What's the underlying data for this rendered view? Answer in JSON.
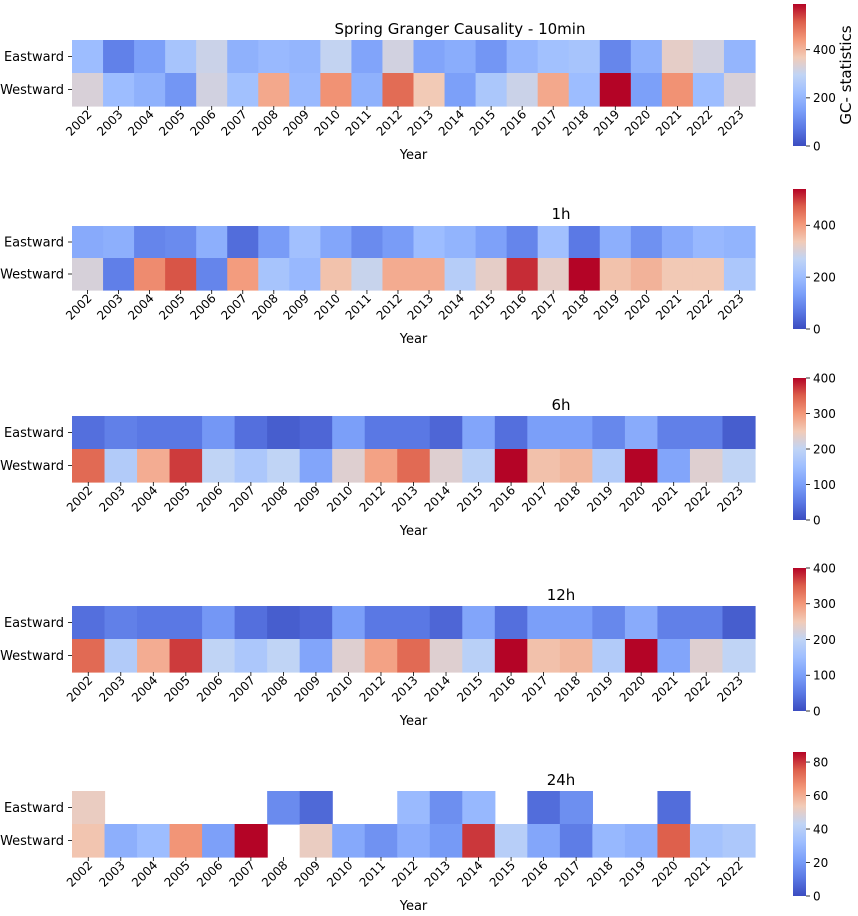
{
  "chart_data": [
    {
      "type": "heatmap",
      "title": "Spring Granger Causality  - 10min",
      "xlabel": "Year",
      "rows": [
        "Eastward",
        "Westward"
      ],
      "categories": [
        "2002",
        "2003",
        "2004",
        "2005",
        "2006",
        "2007",
        "2008",
        "2009",
        "2010",
        "2011",
        "2012",
        "2013",
        "2014",
        "2015",
        "2016",
        "2017",
        "2018",
        "2019",
        "2020",
        "2021",
        "2022",
        "2023"
      ],
      "values": [
        [
          220,
          90,
          150,
          240,
          310,
          190,
          210,
          200,
          300,
          160,
          320,
          160,
          180,
          130,
          200,
          230,
          240,
          100,
          190,
          350,
          320,
          200
        ],
        [
          330,
          220,
          190,
          130,
          320,
          230,
          420,
          210,
          450,
          190,
          500,
          370,
          150,
          250,
          310,
          420,
          220,
          600,
          150,
          450,
          220,
          330
        ]
      ],
      "vmin": 0,
      "vmax": 590,
      "colorbar": {
        "ticks": [
          0,
          200,
          400
        ],
        "label": "GC- statistics"
      }
    },
    {
      "type": "heatmap",
      "title": "1h",
      "xlabel": "Year",
      "rows": [
        "Eastward",
        "Westward"
      ],
      "categories": [
        "2002",
        "2003",
        "2004",
        "2005",
        "2006",
        "2007",
        "2008",
        "2009",
        "2010",
        "2011",
        "2012",
        "2013",
        "2014",
        "2015",
        "2016",
        "2017",
        "2018",
        "2019",
        "2020",
        "2021",
        "2022",
        "2023"
      ],
      "values": [
        [
          160,
          170,
          90,
          100,
          170,
          50,
          130,
          210,
          150,
          100,
          130,
          200,
          180,
          140,
          90,
          210,
          70,
          170,
          110,
          160,
          190,
          180
        ],
        [
          300,
          80,
          420,
          480,
          90,
          400,
          220,
          190,
          350,
          280,
          380,
          380,
          250,
          320,
          510,
          320,
          540,
          350,
          370,
          340,
          340,
          230
        ]
      ],
      "vmin": 0,
      "vmax": 540,
      "colorbar": {
        "ticks": [
          0,
          200,
          400
        ],
        "label": ""
      }
    },
    {
      "type": "heatmap",
      "title": "6h",
      "xlabel": "Year",
      "rows": [
        "Eastward",
        "Westward"
      ],
      "categories": [
        "2002",
        "2003",
        "2004",
        "2005",
        "2006",
        "2007",
        "2008",
        "2009",
        "2010",
        "2012",
        "2013",
        "2014",
        "2015",
        "2016",
        "2017",
        "2018",
        "2019",
        "2020",
        "2021",
        "2022",
        "2023"
      ],
      "values": [
        [
          40,
          60,
          50,
          50,
          90,
          40,
          20,
          30,
          100,
          50,
          50,
          30,
          110,
          40,
          100,
          100,
          70,
          120,
          60,
          60,
          20
        ],
        [
          340,
          180,
          280,
          370,
          200,
          170,
          200,
          110,
          230,
          290,
          340,
          230,
          190,
          400,
          260,
          270,
          180,
          400,
          110,
          230,
          200
        ]
      ],
      "vmin": 0,
      "vmax": 400,
      "colorbar": {
        "ticks": [
          0,
          100,
          200,
          300,
          400
        ],
        "label": ""
      }
    },
    {
      "type": "heatmap",
      "title": "12h",
      "xlabel": "Year",
      "rows": [
        "Eastward",
        "Westward"
      ],
      "categories": [
        "2002",
        "2003",
        "2004",
        "2005",
        "2006",
        "2007",
        "2008",
        "2009",
        "2010",
        "2012",
        "2013",
        "2014",
        "2015",
        "2016",
        "2017",
        "2018",
        "2019",
        "2020",
        "2021",
        "2022",
        "2023"
      ],
      "values": [
        [
          40,
          60,
          50,
          50,
          90,
          40,
          20,
          30,
          100,
          50,
          50,
          30,
          110,
          40,
          100,
          100,
          70,
          120,
          60,
          60,
          20
        ],
        [
          340,
          180,
          280,
          370,
          200,
          170,
          200,
          110,
          230,
          290,
          340,
          230,
          190,
          400,
          260,
          270,
          180,
          400,
          110,
          230,
          200
        ]
      ],
      "vmin": 0,
      "vmax": 400,
      "colorbar": {
        "ticks": [
          0,
          100,
          200,
          300,
          400
        ],
        "label": ""
      }
    },
    {
      "type": "heatmap",
      "title": "24h",
      "xlabel": "Year",
      "rows": [
        "Eastward",
        "Westward"
      ],
      "categories": [
        "2002",
        "2003",
        "2004",
        "2005",
        "2006",
        "2007",
        "2008",
        "2009",
        "2010",
        "2011",
        "2012",
        "2013",
        "2014",
        "2015",
        "2016",
        "2017",
        "2018",
        "2019",
        "2020",
        "2021",
        "2022"
      ],
      "values": [
        [
          52,
          null,
          null,
          null,
          null,
          null,
          16,
          7,
          null,
          null,
          31,
          17,
          30,
          null,
          8,
          17,
          null,
          null,
          8,
          null,
          null
        ],
        [
          55,
          27,
          32,
          65,
          22,
          86,
          null,
          52,
          25,
          18,
          26,
          20,
          80,
          40,
          24,
          12,
          30,
          27,
          75,
          34,
          37
        ]
      ],
      "vmin": 0,
      "vmax": 86,
      "colorbar": {
        "ticks": [
          0,
          20,
          40,
          60,
          80
        ],
        "label": ""
      }
    }
  ]
}
